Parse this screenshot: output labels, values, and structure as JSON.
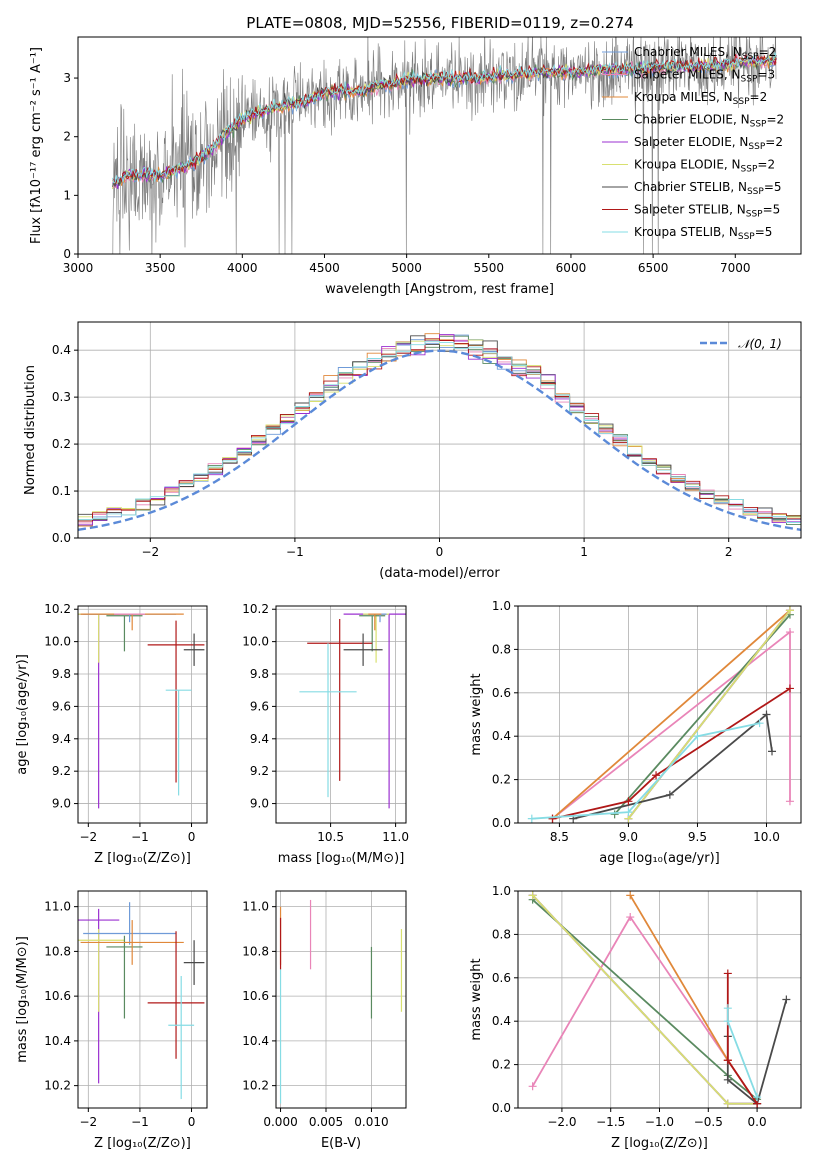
{
  "figure_title": "PLATE=0808, MJD=52556, FIBERID=0119, z=0.274",
  "models": [
    {
      "name": "Chabrier MILES",
      "nssp": "2",
      "color": "#6f9bd8"
    },
    {
      "name": "Salpeter MILES",
      "nssp": "3",
      "color": "#e985b8"
    },
    {
      "name": "Kroupa MILES",
      "nssp": "2",
      "color": "#e0883a"
    },
    {
      "name": "Chabrier ELODIE",
      "nssp": "2",
      "color": "#5a8a60"
    },
    {
      "name": "Salpeter ELODIE",
      "nssp": "2",
      "color": "#9b30d0"
    },
    {
      "name": "Kroupa ELODIE",
      "nssp": "2",
      "color": "#d8e070"
    },
    {
      "name": "Chabrier STELIB",
      "nssp": "5",
      "color": "#4a4a4a"
    },
    {
      "name": "Salpeter STELIB",
      "nssp": "5",
      "color": "#b01818"
    },
    {
      "name": "Kroupa STELIB",
      "nssp": "5",
      "color": "#86dce4"
    }
  ],
  "chart_data": [
    {
      "id": "spectrum",
      "type": "line",
      "title": "PLATE=0808, MJD=52556, FIBERID=0119, z=0.274",
      "xlabel": "wavelength [Angstrom, rest frame]",
      "ylabel": "Flux [fλ10⁻¹⁷ erg cm⁻² s⁻¹ A⁻¹]",
      "xlim": [
        3000,
        7400
      ],
      "ylim": [
        0,
        3.7
      ],
      "xticks": [
        3000,
        3500,
        4000,
        4500,
        5000,
        5500,
        6000,
        6500,
        7000
      ],
      "yticks": [
        0,
        1,
        2,
        3
      ],
      "legend": "upper right",
      "model_continuum": {
        "x": [
          3200,
          3300,
          3400,
          3500,
          3600,
          3700,
          3800,
          3900,
          4000,
          4100,
          4200,
          4300,
          4400,
          4500,
          4600,
          4700,
          4800,
          4900,
          5000,
          5200,
          5400,
          5600,
          5800,
          6000,
          6200,
          6400,
          6600,
          6800,
          7000,
          7200
        ],
        "y": [
          1.15,
          1.35,
          1.35,
          1.32,
          1.45,
          1.55,
          1.75,
          2.05,
          2.3,
          2.4,
          2.5,
          2.55,
          2.6,
          2.75,
          2.8,
          2.75,
          2.85,
          2.9,
          2.95,
          3.0,
          3.0,
          3.05,
          3.1,
          3.1,
          3.15,
          3.15,
          3.2,
          3.2,
          3.25,
          3.3
        ]
      },
      "data_range": [
        3210,
        7250
      ]
    },
    {
      "id": "residuals",
      "type": "histogram",
      "xlabel": "(data-model)/error",
      "ylabel": "Normed distribution",
      "xlim": [
        -2.5,
        2.5
      ],
      "ylim": [
        0,
        0.46
      ],
      "xticks": [
        -2,
        -1,
        0,
        1,
        2
      ],
      "yticks": [
        0.0,
        0.1,
        0.2,
        0.3,
        0.4
      ],
      "legend": "upper right",
      "gaussian_label": "𝒩(0, 1)",
      "bin_width": 0.1
    },
    {
      "id": "age_vs_Z",
      "type": "errorbar",
      "xlabel": "Z [log₁₀(Z/Z⊙)]",
      "ylabel": "age  [log₁₀(age/yr)]",
      "xlim": [
        -2.2,
        0.3
      ],
      "ylim": [
        8.88,
        10.22
      ],
      "xticks": [
        -2,
        -1,
        0
      ],
      "yticks": [
        9.0,
        9.2,
        9.4,
        9.6,
        9.8,
        10.0,
        10.2
      ],
      "points": [
        {
          "model": 4,
          "x": -1.8,
          "y": 10.17,
          "xerr": 0.4,
          "yerr": [
            1.2,
            0.0
          ]
        },
        {
          "model": 5,
          "x": -1.8,
          "y": 10.17,
          "xerr": 0.5,
          "yerr": [
            0.3,
            0.0
          ]
        },
        {
          "model": 3,
          "x": -1.3,
          "y": 10.16,
          "xerr": 0.35,
          "yerr": [
            0.22,
            0.0
          ]
        },
        {
          "model": 0,
          "x": -1.2,
          "y": 10.17,
          "xerr": 0.9,
          "yerr": [
            0.05,
            0.0
          ]
        },
        {
          "model": 2,
          "x": -1.15,
          "y": 10.17,
          "xerr": 1.0,
          "yerr": [
            0.1,
            0.0
          ]
        },
        {
          "model": 1,
          "x": -1.2,
          "y": 10.17,
          "xerr": 0.3,
          "yerr": [
            0.0,
            0.0
          ]
        },
        {
          "model": 7,
          "x": -0.3,
          "y": 9.98,
          "xerr": 0.55,
          "yerr": [
            0.85,
            0.15
          ]
        },
        {
          "model": 6,
          "x": 0.05,
          "y": 9.95,
          "xerr": 0.2,
          "yerr": [
            0.1,
            0.1
          ]
        },
        {
          "model": 8,
          "x": -0.25,
          "y": 9.7,
          "xerr": 0.25,
          "yerr": [
            0.65,
            0.0
          ]
        }
      ]
    },
    {
      "id": "age_vs_mass",
      "type": "errorbar",
      "xlabel": "mass [log₁₀(M/M⊙)]",
      "ylabel": "",
      "xlim": [
        10.08,
        11.08
      ],
      "ylim": [
        8.88,
        10.22
      ],
      "xticks": [
        10.5,
        11.0
      ],
      "yticks": [
        9.0,
        9.2,
        9.4,
        9.6,
        9.8,
        10.0,
        10.2
      ],
      "points": [
        {
          "model": 4,
          "x": 10.95,
          "y": 10.17,
          "xerr": 0.35,
          "yerr": [
            1.2,
            0.0
          ]
        },
        {
          "model": 5,
          "x": 10.85,
          "y": 10.17,
          "xerr": 0.1,
          "yerr": [
            0.3,
            0.0
          ]
        },
        {
          "model": 3,
          "x": 10.82,
          "y": 10.16,
          "xerr": 0.1,
          "yerr": [
            0.22,
            0.0
          ]
        },
        {
          "model": 0,
          "x": 10.88,
          "y": 10.17,
          "xerr": 0.05,
          "yerr": [
            0.05,
            0.0
          ]
        },
        {
          "model": 2,
          "x": 10.84,
          "y": 10.17,
          "xerr": 0.05,
          "yerr": [
            0.1,
            0.0
          ]
        },
        {
          "model": 7,
          "x": 10.57,
          "y": 9.99,
          "xerr": 0.25,
          "yerr": [
            0.85,
            0.15
          ]
        },
        {
          "model": 6,
          "x": 10.75,
          "y": 9.95,
          "xerr": 0.15,
          "yerr": [
            0.1,
            0.1
          ]
        },
        {
          "model": 8,
          "x": 10.48,
          "y": 9.69,
          "xerr": 0.22,
          "yerr": [
            0.65,
            0.3
          ]
        }
      ]
    },
    {
      "id": "weight_vs_age",
      "type": "line",
      "xlabel": "age  [log₁₀(age/yr)]",
      "ylabel": "mass weight",
      "xlim": [
        8.2,
        10.25
      ],
      "ylim": [
        0,
        1
      ],
      "xticks": [
        8.5,
        9.0,
        9.5,
        10.0
      ],
      "yticks": [
        0.0,
        0.2,
        0.4,
        0.6,
        0.8,
        1.0
      ],
      "series": [
        {
          "model": 0,
          "x": [
            9.0,
            10.17
          ],
          "y": [
            0.02,
            0.98
          ]
        },
        {
          "model": 1,
          "x": [
            8.45,
            10.17,
            10.17
          ],
          "y": [
            0.02,
            0.88,
            0.1
          ]
        },
        {
          "model": 2,
          "x": [
            8.45,
            10.17
          ],
          "y": [
            0.02,
            0.98
          ]
        },
        {
          "model": 3,
          "x": [
            8.9,
            10.17
          ],
          "y": [
            0.04,
            0.96
          ]
        },
        {
          "model": 4,
          "x": [
            9.0,
            10.17
          ],
          "y": [
            0.02,
            0.98
          ]
        },
        {
          "model": 5,
          "x": [
            9.0,
            10.17
          ],
          "y": [
            0.02,
            0.98
          ]
        },
        {
          "model": 6,
          "x": [
            8.6,
            9.3,
            10.0,
            10.04
          ],
          "y": [
            0.02,
            0.13,
            0.5,
            0.33
          ]
        },
        {
          "model": 7,
          "x": [
            8.45,
            9.0,
            9.2,
            10.17
          ],
          "y": [
            0.02,
            0.1,
            0.22,
            0.62
          ]
        },
        {
          "model": 8,
          "x": [
            8.3,
            9.0,
            9.5,
            9.95
          ],
          "y": [
            0.02,
            0.05,
            0.4,
            0.46
          ]
        }
      ]
    },
    {
      "id": "mass_vs_Z",
      "type": "errorbar",
      "xlabel": "Z [log₁₀(Z/Z⊙)]",
      "ylabel": "mass [log₁₀(M/M⊙)]",
      "xlim": [
        -2.2,
        0.3
      ],
      "ylim": [
        10.1,
        11.07
      ],
      "xticks": [
        -2,
        -1,
        0
      ],
      "yticks": [
        10.2,
        10.4,
        10.6,
        10.8,
        11.0
      ],
      "points": [
        {
          "model": 4,
          "x": -1.8,
          "y": 10.94,
          "xerr": 0.4,
          "yerr": [
            0.73,
            0.05
          ]
        },
        {
          "model": 5,
          "x": -1.8,
          "y": 10.85,
          "xerr": 0.5,
          "yerr": [
            0.32,
            0.05
          ]
        },
        {
          "model": 3,
          "x": -1.3,
          "y": 10.82,
          "xerr": 0.35,
          "yerr": [
            0.32,
            0.05
          ]
        },
        {
          "model": 0,
          "x": -1.2,
          "y": 10.88,
          "xerr": 0.9,
          "yerr": [
            0.05,
            0.14
          ]
        },
        {
          "model": 2,
          "x": -1.15,
          "y": 10.84,
          "xerr": 1.0,
          "yerr": [
            0.1,
            0.1
          ]
        },
        {
          "model": 7,
          "x": -0.3,
          "y": 10.57,
          "xerr": 0.55,
          "yerr": [
            0.25,
            0.32
          ]
        },
        {
          "model": 6,
          "x": 0.05,
          "y": 10.75,
          "xerr": 0.2,
          "yerr": [
            0.1,
            0.1
          ]
        },
        {
          "model": 8,
          "x": -0.2,
          "y": 10.47,
          "xerr": 0.25,
          "yerr": [
            0.33,
            0.22
          ]
        }
      ]
    },
    {
      "id": "mass_vs_EBV",
      "type": "errorbar",
      "xlabel": "E(B-V)",
      "ylabel": "",
      "xlim": [
        -0.0005,
        0.0138
      ],
      "ylim": [
        10.1,
        11.07
      ],
      "xticks": [
        0.0,
        0.005,
        0.01
      ],
      "xticklabels": [
        "0.000",
        "0.005",
        "0.010"
      ],
      "yticks": [
        10.2,
        10.4,
        10.6,
        10.8,
        11.0
      ],
      "points": [
        {
          "model": 8,
          "x": 0.0,
          "y": 10.47,
          "xerr": 0,
          "yerr": [
            0.35,
            0.25
          ]
        },
        {
          "model": 2,
          "x": 0.0,
          "y": 10.84,
          "xerr": 0,
          "yerr": [
            0.1,
            0.16
          ]
        },
        {
          "model": 7,
          "x": 0.0,
          "y": 10.85,
          "xerr": 0,
          "yerr": [
            0.13,
            0.1
          ]
        },
        {
          "model": 1,
          "x": 0.0033,
          "y": 10.88,
          "xerr": 0,
          "yerr": [
            0.16,
            0.15
          ]
        },
        {
          "model": 3,
          "x": 0.01,
          "y": 10.82,
          "xerr": 0,
          "yerr": [
            0.32,
            0.0
          ]
        },
        {
          "model": 5,
          "x": 0.0133,
          "y": 10.85,
          "xerr": 0,
          "yerr": [
            0.32,
            0.05
          ]
        }
      ]
    },
    {
      "id": "weight_vs_Z",
      "type": "line",
      "xlabel": "Z [log₁₀(Z/Z⊙)]",
      "ylabel": "mass weight",
      "xlim": [
        -2.45,
        0.45
      ],
      "ylim": [
        0,
        1
      ],
      "xticks": [
        -2.0,
        -1.5,
        -1.0,
        -0.5,
        0.0
      ],
      "yticks": [
        0.0,
        0.2,
        0.4,
        0.6,
        0.8,
        1.0
      ],
      "series": [
        {
          "model": 0,
          "x": [
            -2.3,
            -0.3,
            0.0
          ],
          "y": [
            0.98,
            0.02,
            0.02
          ]
        },
        {
          "model": 1,
          "x": [
            -2.3,
            -1.3,
            -0.3,
            0.0
          ],
          "y": [
            0.1,
            0.88,
            0.22,
            0.02
          ]
        },
        {
          "model": 2,
          "x": [
            -1.3,
            -0.3,
            0.0
          ],
          "y": [
            0.98,
            0.22,
            0.02
          ]
        },
        {
          "model": 3,
          "x": [
            -2.3,
            -0.3,
            0.0
          ],
          "y": [
            0.96,
            0.15,
            0.04
          ]
        },
        {
          "model": 4,
          "x": [
            -2.3,
            -0.3,
            0.0
          ],
          "y": [
            0.98,
            0.02,
            0.02
          ]
        },
        {
          "model": 5,
          "x": [
            -2.3,
            -0.3,
            0.0
          ],
          "y": [
            0.98,
            0.02,
            0.02
          ]
        },
        {
          "model": 6,
          "x": [
            -0.3,
            -0.3,
            0.0,
            0.3
          ],
          "y": [
            0.33,
            0.13,
            0.02,
            0.5
          ]
        },
        {
          "model": 7,
          "x": [
            -0.3,
            -0.3,
            0.0
          ],
          "y": [
            0.62,
            0.22,
            0.02
          ]
        },
        {
          "model": 8,
          "x": [
            -0.3,
            -0.3,
            0.0
          ],
          "y": [
            0.46,
            0.4,
            0.05
          ]
        }
      ]
    }
  ]
}
